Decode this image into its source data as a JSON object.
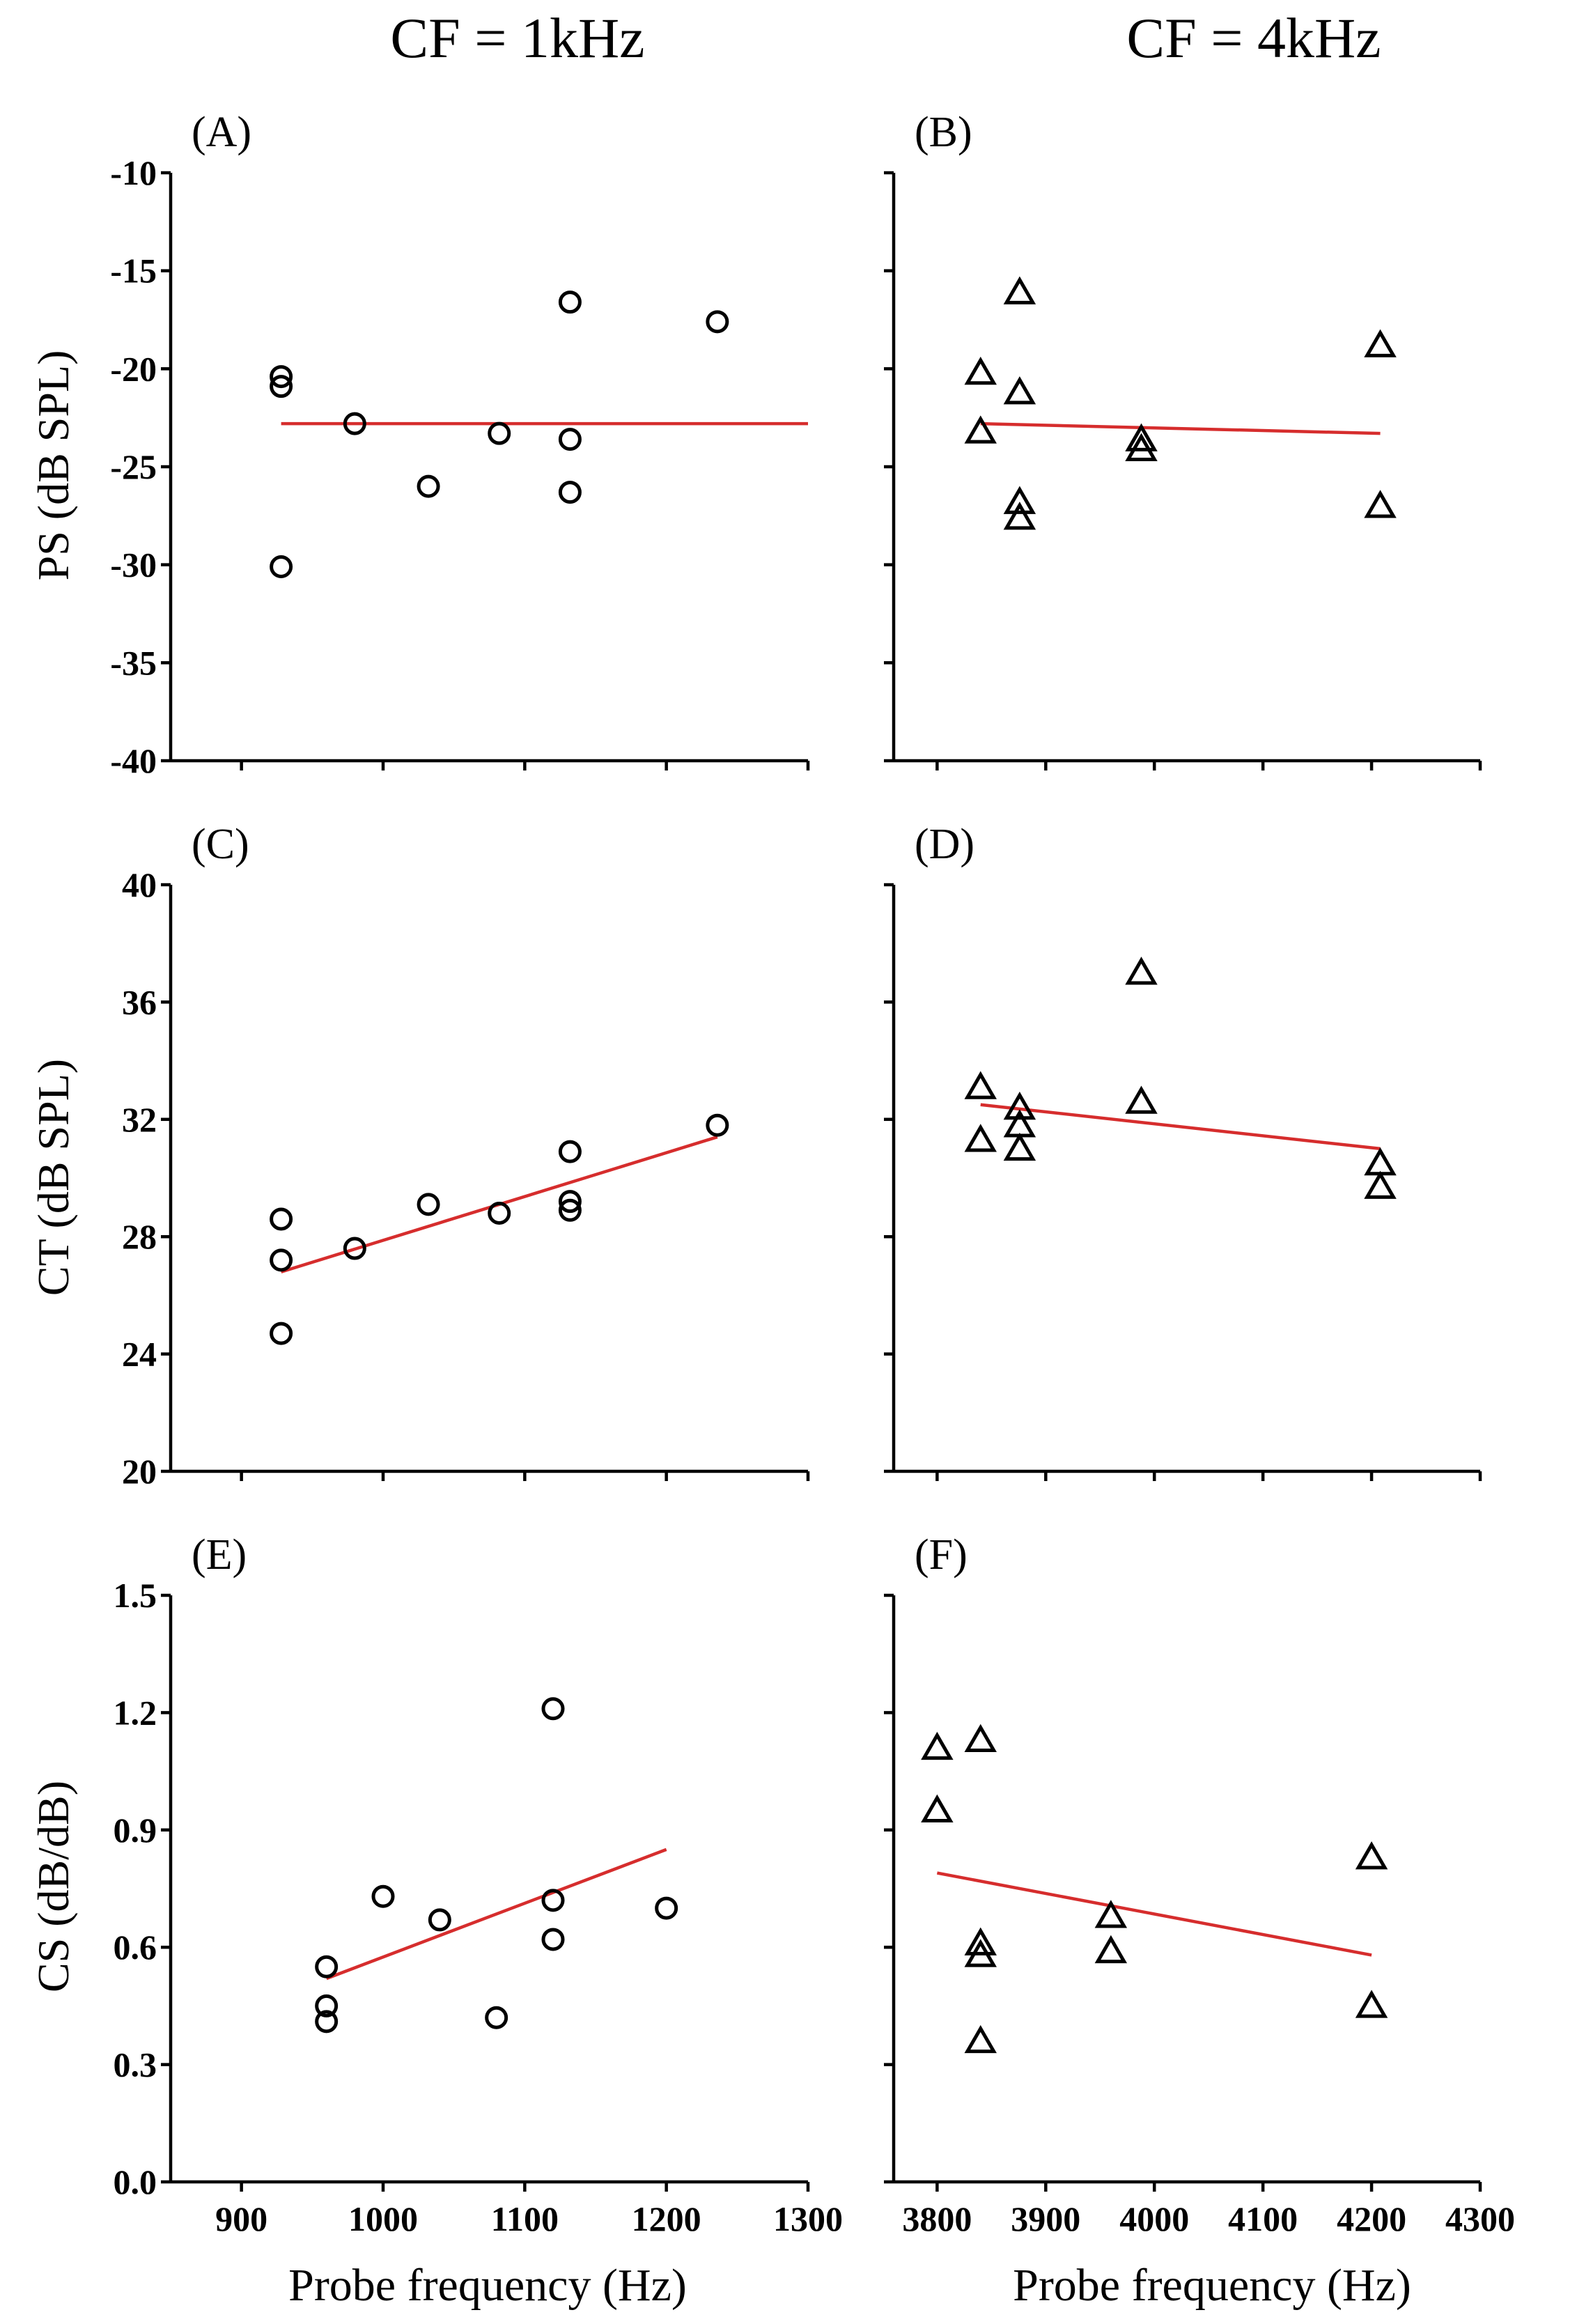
{
  "column_titles": [
    "CF = 1kHz",
    "CF = 4kHz"
  ],
  "x_label": "Probe frequency (Hz)",
  "colors": {
    "fit_line": "#d62d2d",
    "marker": "#000000"
  },
  "chart_data": [
    {
      "panel": "(A)",
      "type": "scatter",
      "marker": "circle",
      "ylabel": "PS (dB SPL)",
      "xlim": [
        850,
        1300
      ],
      "ylim": [
        -40,
        -10
      ],
      "xticks": [
        900,
        1000,
        1100,
        1200,
        1300
      ],
      "xtick_labels_shown": false,
      "yticks": [
        -40,
        -35,
        -30,
        -25,
        -20,
        -15,
        -10
      ],
      "ytick_labels_shown": true,
      "x": [
        928,
        928,
        928,
        980,
        1032,
        1082,
        1132,
        1132,
        1132,
        1236
      ],
      "y": [
        -20.4,
        -20.9,
        -30.1,
        -22.8,
        -26.0,
        -23.3,
        -16.6,
        -23.6,
        -26.3,
        -17.6
      ],
      "fit": {
        "x": [
          928,
          1300
        ],
        "y": [
          -22.8,
          -22.8
        ]
      }
    },
    {
      "panel": "(B)",
      "type": "scatter",
      "marker": "triangle",
      "ylabel": "",
      "xlim": [
        3760,
        4300
      ],
      "ylim": [
        -40,
        -10
      ],
      "xticks": [
        3800,
        3900,
        4000,
        4100,
        4200,
        4300
      ],
      "xtick_labels_shown": false,
      "yticks": [
        -40,
        -35,
        -30,
        -25,
        -20,
        -15,
        -10
      ],
      "ytick_labels_shown": false,
      "x": [
        3840,
        3840,
        3876,
        3876,
        3876,
        3876,
        3988,
        3988,
        4208,
        4208
      ],
      "y": [
        -20.2,
        -23.2,
        -16.1,
        -21.2,
        -26.8,
        -27.6,
        -23.6,
        -24.1,
        -18.8,
        -27.0
      ],
      "fit": {
        "x": [
          3840,
          4208
        ],
        "y": [
          -22.8,
          -23.3
        ]
      }
    },
    {
      "panel": "(C)",
      "type": "scatter",
      "marker": "circle",
      "ylabel": "CT (dB SPL)",
      "xlim": [
        850,
        1300
      ],
      "ylim": [
        20,
        40
      ],
      "xticks": [
        900,
        1000,
        1100,
        1200,
        1300
      ],
      "xtick_labels_shown": false,
      "yticks": [
        20,
        24,
        28,
        32,
        36,
        40
      ],
      "ytick_labels_shown": true,
      "x": [
        928,
        928,
        928,
        980,
        1032,
        1082,
        1132,
        1132,
        1132,
        1236
      ],
      "y": [
        28.6,
        27.2,
        24.7,
        27.6,
        29.1,
        28.8,
        30.9,
        29.2,
        28.9,
        31.8
      ],
      "fit": {
        "x": [
          928,
          1236
        ],
        "y": [
          26.8,
          31.4
        ]
      }
    },
    {
      "panel": "(D)",
      "type": "scatter",
      "marker": "triangle",
      "ylabel": "",
      "xlim": [
        3760,
        4300
      ],
      "ylim": [
        20,
        40
      ],
      "xticks": [
        3800,
        3900,
        4000,
        4100,
        4200,
        4300
      ],
      "xtick_labels_shown": false,
      "yticks": [
        20,
        24,
        28,
        32,
        36,
        40
      ],
      "ytick_labels_shown": false,
      "x": [
        3840,
        3840,
        3876,
        3876,
        3876,
        3988,
        3988,
        4208,
        4208
      ],
      "y": [
        33.1,
        31.3,
        32.4,
        31.8,
        31.0,
        37.0,
        32.6,
        30.5,
        29.7
      ],
      "fit": {
        "x": [
          3840,
          4208
        ],
        "y": [
          32.5,
          31.0
        ]
      }
    },
    {
      "panel": "(E)",
      "type": "scatter",
      "marker": "circle",
      "ylabel": "CS (dB/dB)",
      "xlim": [
        850,
        1300
      ],
      "ylim": [
        0.0,
        1.5
      ],
      "xticks": [
        900,
        1000,
        1100,
        1200,
        1300
      ],
      "xtick_labels_shown": true,
      "yticks": [
        0.0,
        0.3,
        0.6,
        0.9,
        1.2,
        1.5
      ],
      "ytick_labels_shown": true,
      "ytick_labels": [
        "0.0",
        "0.3",
        "0.6",
        "0.9",
        "1.2",
        "1.5"
      ],
      "x": [
        960,
        960,
        960,
        1000,
        1040,
        1080,
        1120,
        1120,
        1120,
        1200
      ],
      "y": [
        0.55,
        0.45,
        0.41,
        0.73,
        0.67,
        0.42,
        1.21,
        0.72,
        0.62,
        0.7
      ],
      "fit": {
        "x": [
          960,
          1200
        ],
        "y": [
          0.52,
          0.85
        ]
      }
    },
    {
      "panel": "(F)",
      "type": "scatter",
      "marker": "triangle",
      "ylabel": "",
      "xlim": [
        3760,
        4300
      ],
      "ylim": [
        0.0,
        1.5
      ],
      "xticks": [
        3800,
        3900,
        4000,
        4100,
        4200,
        4300
      ],
      "xtick_labels_shown": true,
      "yticks": [
        0.0,
        0.3,
        0.6,
        0.9,
        1.2,
        1.5
      ],
      "ytick_labels_shown": false,
      "x": [
        3800,
        3800,
        3840,
        3840,
        3840,
        3840,
        3960,
        3960,
        4200,
        4200
      ],
      "y": [
        1.11,
        0.95,
        1.13,
        0.61,
        0.58,
        0.36,
        0.68,
        0.59,
        0.83,
        0.45
      ],
      "fit": {
        "x": [
          3800,
          4200
        ],
        "y": [
          0.79,
          0.58
        ]
      }
    }
  ]
}
